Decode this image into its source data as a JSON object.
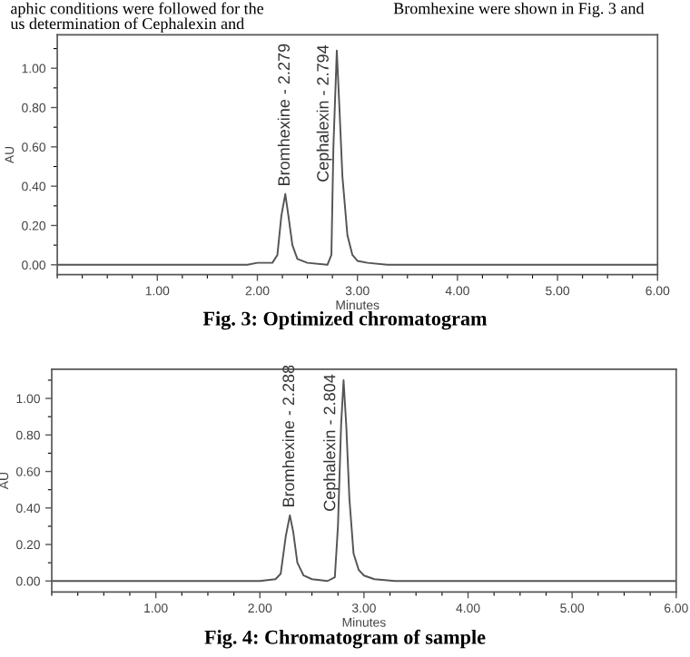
{
  "chart_data": [
    {
      "type": "line",
      "title": "Fig. 3: Optimized chromatogram",
      "xlabel": "Minutes",
      "ylabel": "AU",
      "xlim": [
        0,
        6.0
      ],
      "ylim": [
        -0.05,
        1.17
      ],
      "xticks": [
        {
          "value": 1,
          "label": "1.00"
        },
        {
          "value": 2,
          "label": "2.00"
        },
        {
          "value": 3,
          "label": "3.00"
        },
        {
          "value": 4,
          "label": "4.00"
        },
        {
          "value": 5,
          "label": "5.00"
        },
        {
          "value": 6,
          "label": "6.00"
        }
      ],
      "yticks": [
        {
          "value": 0,
          "label": "0.00"
        },
        {
          "value": 0.2,
          "label": "0.20"
        },
        {
          "value": 0.4,
          "label": "0.40"
        },
        {
          "value": 0.6,
          "label": "0.60"
        },
        {
          "value": 0.8,
          "label": "0.80"
        },
        {
          "value": 1.0,
          "label": "1.00"
        }
      ],
      "grid": false,
      "legend": false,
      "marker": "none",
      "line_style": "solid",
      "series": [
        {
          "color": "#555555",
          "x": [
            0,
            1.9,
            2.0,
            2.15,
            2.2,
            2.24,
            2.279,
            2.31,
            2.35,
            2.4,
            2.5,
            2.7,
            2.74,
            2.76,
            2.794,
            2.82,
            2.85,
            2.9,
            2.95,
            3.0,
            3.1,
            3.3,
            3.5,
            6.0
          ],
          "values": [
            0,
            0,
            0.01,
            0.01,
            0.05,
            0.25,
            0.36,
            0.25,
            0.1,
            0.03,
            0.01,
            0,
            0.05,
            0.6,
            1.09,
            0.8,
            0.45,
            0.15,
            0.05,
            0.02,
            0.01,
            0,
            0,
            0
          ]
        }
      ],
      "annotations": [
        {
          "text": "Bromhexine - 2.279",
          "x": 2.279,
          "y": 0.36
        },
        {
          "text": "Cephalexin - 2.794",
          "x": 2.794,
          "y": 0.42
        },
        "aphic conditions were followed for the",
        "Bromhexine were shown in Fig. 3 and",
        "us determination of Cephalexin and"
      ]
    },
    {
      "type": "line",
      "title": "Fig. 4: Chromatogram of sample",
      "xlabel": "Minutes",
      "ylabel": "AU",
      "xlim": [
        0,
        6.0
      ],
      "ylim": [
        -0.06,
        1.16
      ],
      "xticks": [
        {
          "value": 1,
          "label": "1.00"
        },
        {
          "value": 2,
          "label": "2.00"
        },
        {
          "value": 3,
          "label": "3.00"
        },
        {
          "value": 4,
          "label": "4.00"
        },
        {
          "value": 5,
          "label": "5.00"
        },
        {
          "value": 6,
          "label": "6.00"
        }
      ],
      "yticks": [
        {
          "value": 0,
          "label": "0.00"
        },
        {
          "value": 0.2,
          "label": "0.20"
        },
        {
          "value": 0.4,
          "label": "0.40"
        },
        {
          "value": 0.6,
          "label": "0.60"
        },
        {
          "value": 0.8,
          "label": "0.80"
        },
        {
          "value": 1.0,
          "label": "1.00"
        }
      ],
      "grid": false,
      "legend": false,
      "marker": "none",
      "line_style": "solid",
      "series": [
        {
          "color": "#555555",
          "x": [
            0,
            2.0,
            2.15,
            2.2,
            2.25,
            2.288,
            2.32,
            2.36,
            2.42,
            2.5,
            2.65,
            2.72,
            2.75,
            2.78,
            2.804,
            2.83,
            2.86,
            2.9,
            2.95,
            3.0,
            3.1,
            3.3,
            6.0
          ],
          "values": [
            0,
            0,
            0.01,
            0.04,
            0.25,
            0.36,
            0.27,
            0.1,
            0.03,
            0.01,
            0,
            0.02,
            0.3,
            0.85,
            1.1,
            0.85,
            0.45,
            0.15,
            0.06,
            0.03,
            0.01,
            0,
            0
          ]
        }
      ],
      "annotations": [
        {
          "text": "Bromhexine - 2.288",
          "x": 2.288,
          "y": 0.36
        },
        {
          "text": "Cephalexin - 2.804",
          "x": 2.804,
          "y": 0.38
        }
      ]
    }
  ]
}
